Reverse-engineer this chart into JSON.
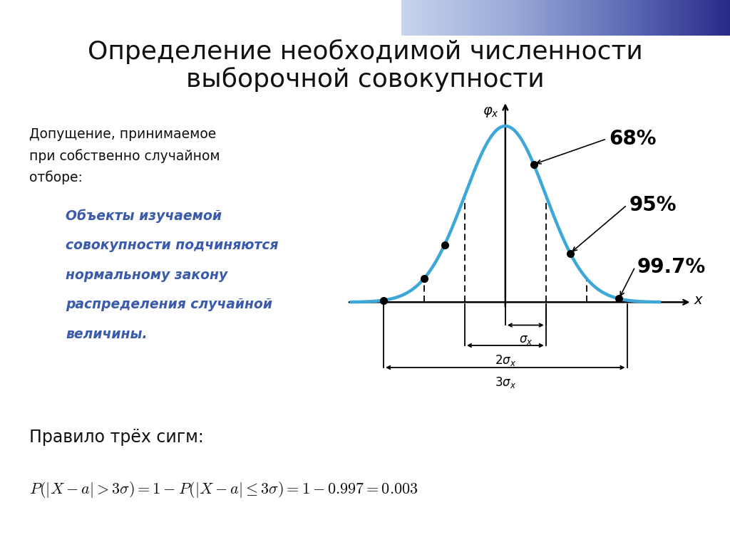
{
  "title_line1": "Определение необходимой численности",
  "title_line2": "выборочной совокупности",
  "title_fontsize": 26,
  "bg_color": "#ffffff",
  "left_text1": "Допущение, принимаемое",
  "left_text2": "при собственно случайном",
  "left_text3": "отборе:",
  "italic_text_lines": [
    "Объекты изучаемой",
    "совокупности подчиняются",
    "нормальному закону",
    "распределения случайной",
    "величины."
  ],
  "rule_title": "Правило трёх сигм:",
  "curve_color": "#3da8d8",
  "curve_linewidth": 3.2,
  "percent_68": "68%",
  "percent_95": "95%",
  "percent_997": "99.7%",
  "italic_color": "#3a5aaa",
  "text_color": "#111111",
  "dot_size": 7
}
